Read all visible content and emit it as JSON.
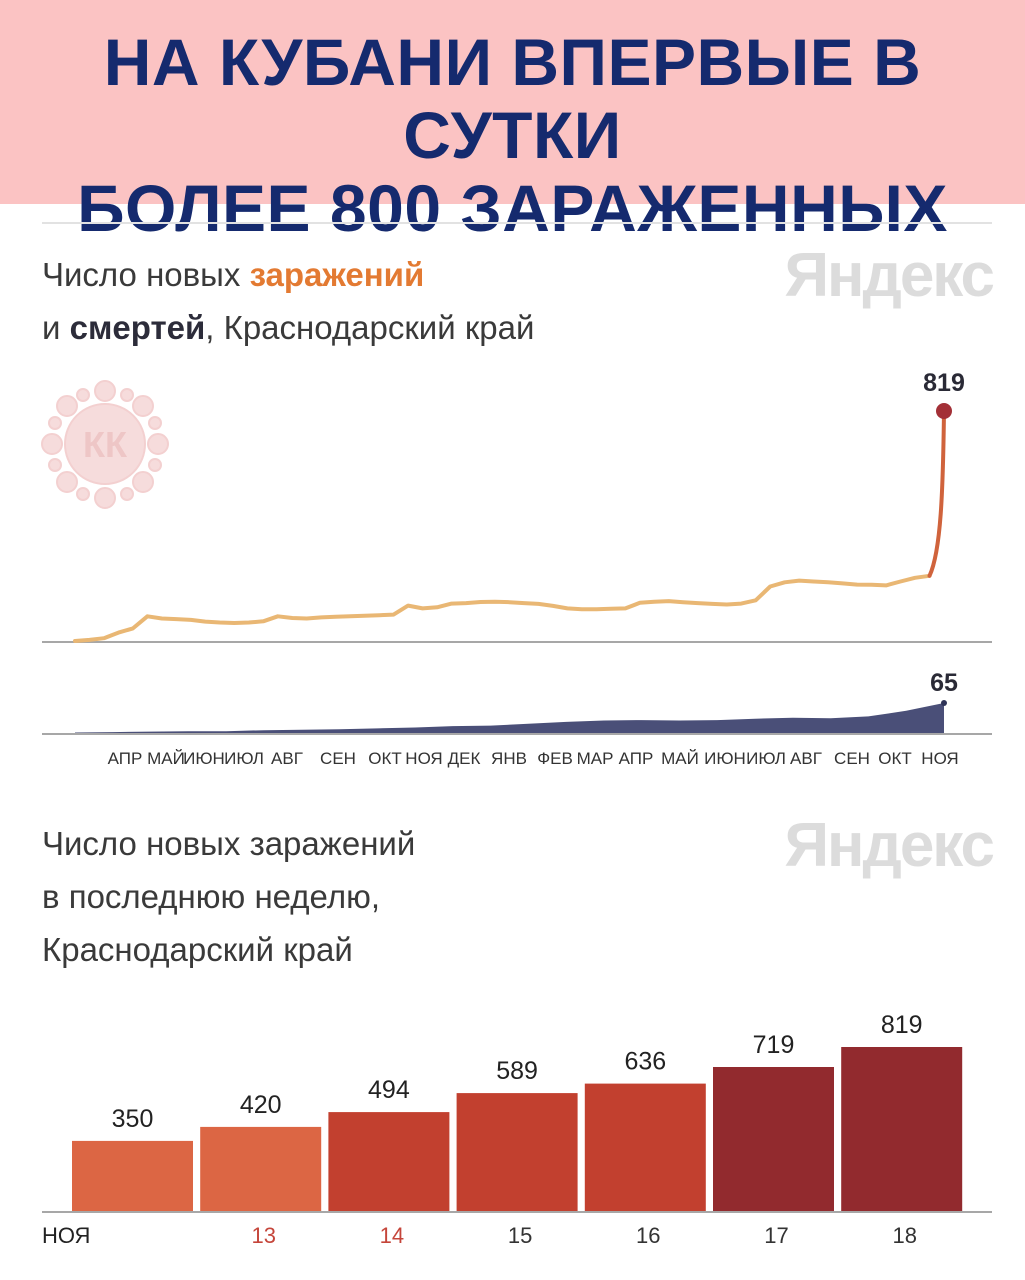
{
  "header": {
    "line1": "НА КУБАНИ ВПЕРВЫЕ В СУТКИ",
    "line2": "БОЛЕЕ 800 ЗАРАЖЕННЫХ",
    "background": "#fbc3c3",
    "text_color": "#152a6e"
  },
  "brand": "Яндекс",
  "logo_text": "КК",
  "chart1": {
    "title_line1_prefix": "Число новых ",
    "title_line1_highlight": "заражений",
    "title_line2_prefix": "и ",
    "title_line2_highlight": "смертей",
    "title_line2_suffix": ", Краснодарский край"
  },
  "chart2": {
    "title_line1": "Число новых заражений",
    "title_line2": "в последнюю неделю,",
    "title_line3": "Краснодарский край"
  },
  "chart_data": [
    {
      "type": "line",
      "series": [
        {
          "name": "заражения",
          "color": "#e9b774",
          "values": [
            0,
            4,
            10,
            30,
            45,
            88,
            80,
            78,
            75,
            69,
            66,
            64,
            66,
            70,
            88,
            82,
            80,
            84,
            86,
            88,
            90,
            92,
            94,
            126,
            116,
            120,
            133,
            135,
            139,
            140,
            138,
            135,
            132,
            125,
            116,
            113,
            113,
            115,
            116,
            136,
            140,
            142,
            138,
            135,
            132,
            130,
            133,
            145,
            194,
            209,
            215,
            212,
            209,
            205,
            201,
            200,
            198,
            212,
            225,
            232,
            819
          ],
          "end_label": "819",
          "end_color": "#a33037"
        },
        {
          "name": "смерти",
          "color": "#4a4f78",
          "values": [
            1,
            2,
            3,
            4,
            4,
            6,
            7,
            8,
            10,
            12,
            15,
            16,
            20,
            24,
            27,
            28,
            27,
            28,
            31,
            33,
            32,
            36,
            48,
            65
          ],
          "end_label": "65"
        }
      ],
      "x_ticks": [
        "АПР",
        "МАЙ",
        "ИЮН",
        "ИЮЛ",
        "АВГ",
        "СЕН",
        "ОКТ",
        "НОЯ",
        "ДЕК",
        "ЯНВ",
        "ФЕВ",
        "МАР",
        "АПР",
        "МАЙ",
        "ИЮН",
        "ИЮЛ",
        "АВГ",
        "СЕН",
        "ОКТ",
        "НОЯ"
      ]
    },
    {
      "type": "bar",
      "categories": [
        "НОЯ",
        "13",
        "14",
        "15",
        "16",
        "17",
        "18"
      ],
      "category_colors": [
        "#222222",
        "#c5453a",
        "#c5453a",
        "#333333",
        "#333333",
        "#333333",
        "#333333"
      ],
      "values": [
        350,
        420,
        494,
        589,
        636,
        719,
        819
      ],
      "colors": [
        "#dc6644",
        "#dc6644",
        "#c2402f",
        "#c2402f",
        "#c2402f",
        "#922a2e",
        "#922a2e"
      ]
    }
  ]
}
